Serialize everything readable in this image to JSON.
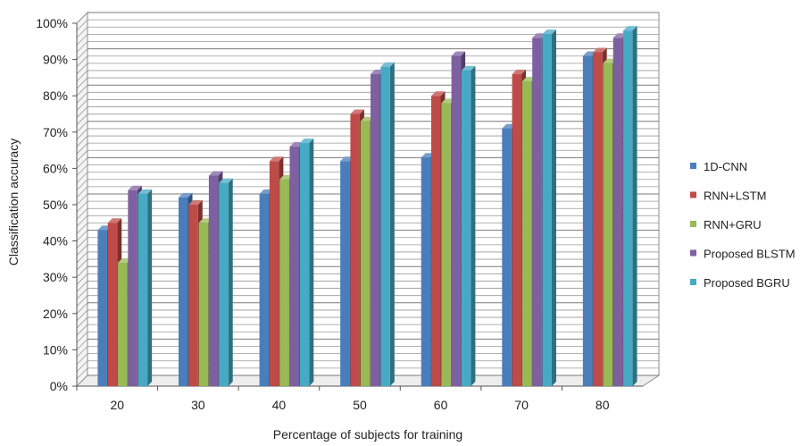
{
  "chart_data": {
    "type": "bar",
    "style": "3d-clustered-column",
    "title": "",
    "xlabel": "Percentage of subjects for training",
    "ylabel": "Classification accuracy",
    "ylim": [
      0,
      100
    ],
    "y_ticks": [
      "0%",
      "10%",
      "20%",
      "30%",
      "40%",
      "50%",
      "60%",
      "70%",
      "80%",
      "90%",
      "100%"
    ],
    "y_tick_values": [
      0,
      10,
      20,
      30,
      40,
      50,
      60,
      70,
      80,
      90,
      100
    ],
    "categories": [
      "20",
      "30",
      "40",
      "50",
      "60",
      "70",
      "80"
    ],
    "grid": true,
    "legend_position": "right",
    "series": [
      {
        "name": "1D-CNN",
        "color": "#4a7ebb",
        "values": [
          43,
          52,
          53,
          62,
          63,
          71,
          91
        ]
      },
      {
        "name": "RNN+LSTM",
        "color": "#be4b48",
        "values": [
          45,
          50,
          62,
          75,
          80,
          86,
          92
        ]
      },
      {
        "name": "RNN+GRU",
        "color": "#98b954",
        "values": [
          34,
          45,
          57,
          73,
          78,
          84,
          89
        ]
      },
      {
        "name": "Proposed BLSTM",
        "color": "#7d60a0",
        "values": [
          54,
          58,
          66,
          86,
          91,
          96,
          96
        ]
      },
      {
        "name": "Proposed BGRU",
        "color": "#46aac5",
        "values": [
          53,
          56,
          67,
          88,
          87,
          97,
          98
        ]
      }
    ]
  }
}
